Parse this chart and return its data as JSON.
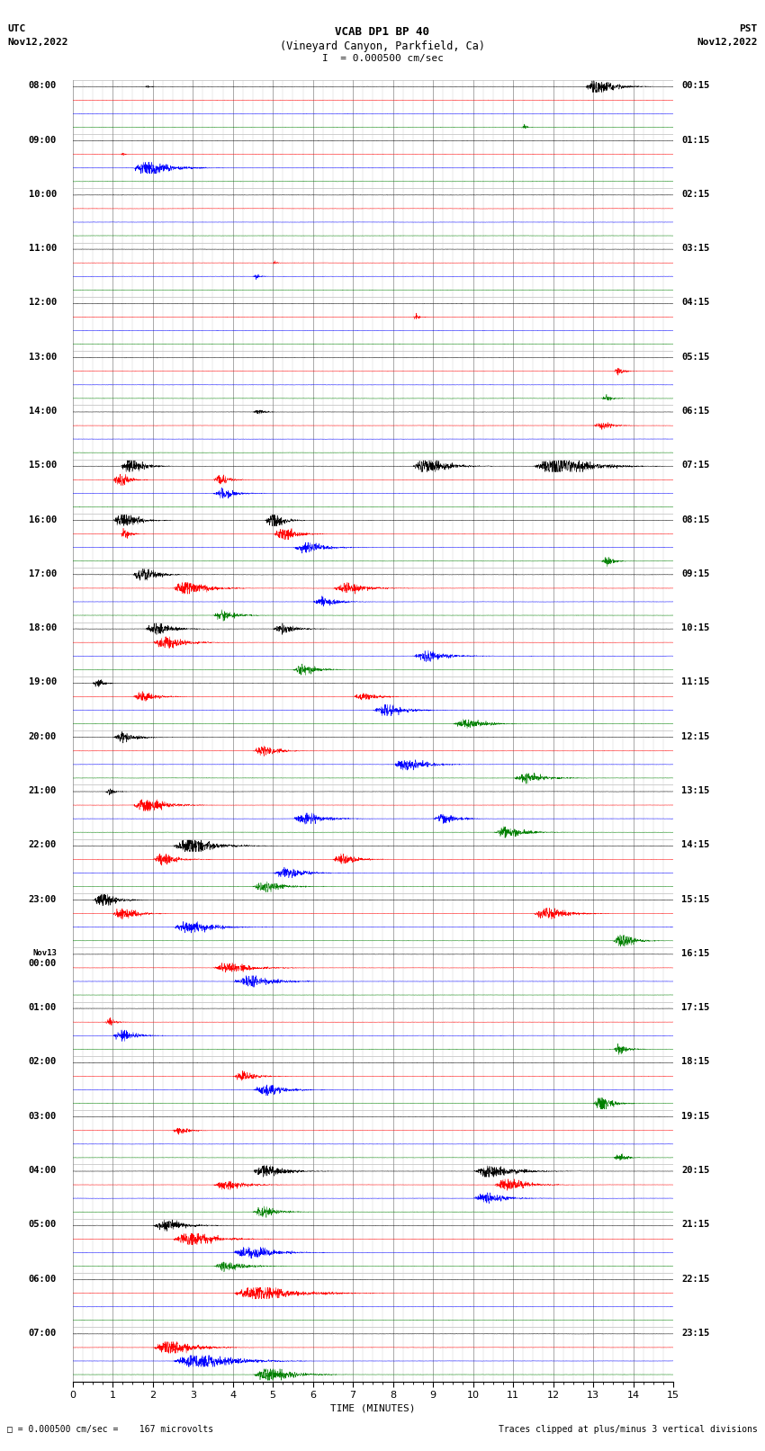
{
  "title_line1": "VCAB DP1 BP 40",
  "title_line2": "(Vineyard Canyon, Parkfield, Ca)",
  "scale_text": "I  = 0.000500 cm/sec",
  "utc_label": "UTC",
  "utc_date": "Nov12,2022",
  "pst_label": "PST",
  "pst_date": "Nov12,2022",
  "left_times": [
    "08:00",
    "09:00",
    "10:00",
    "11:00",
    "12:00",
    "13:00",
    "14:00",
    "15:00",
    "16:00",
    "17:00",
    "18:00",
    "19:00",
    "20:00",
    "21:00",
    "22:00",
    "23:00",
    "Nov13\n00:00",
    "01:00",
    "02:00",
    "03:00",
    "04:00",
    "05:00",
    "06:00",
    "07:00"
  ],
  "right_times": [
    "00:15",
    "01:15",
    "02:15",
    "03:15",
    "04:15",
    "05:15",
    "06:15",
    "07:15",
    "08:15",
    "09:15",
    "10:15",
    "11:15",
    "12:15",
    "13:15",
    "14:15",
    "15:15",
    "16:15",
    "17:15",
    "18:15",
    "19:15",
    "20:15",
    "21:15",
    "22:15",
    "23:15"
  ],
  "bottom_label": "TIME (MINUTES)",
  "footer_left": "= 0.000500 cm/sec =    167 microvolts",
  "footer_right": "Traces clipped at plus/minus 3 vertical divisions",
  "trace_colors": [
    "#000000",
    "#ff0000",
    "#0000ff",
    "#008000"
  ],
  "bg_color": "#ffffff",
  "n_groups": 24,
  "minutes": 15,
  "xlabel_ticks": [
    0,
    1,
    2,
    3,
    4,
    5,
    6,
    7,
    8,
    9,
    10,
    11,
    12,
    13,
    14,
    15
  ],
  "base_noise": 0.004,
  "event_noise": 0.25
}
